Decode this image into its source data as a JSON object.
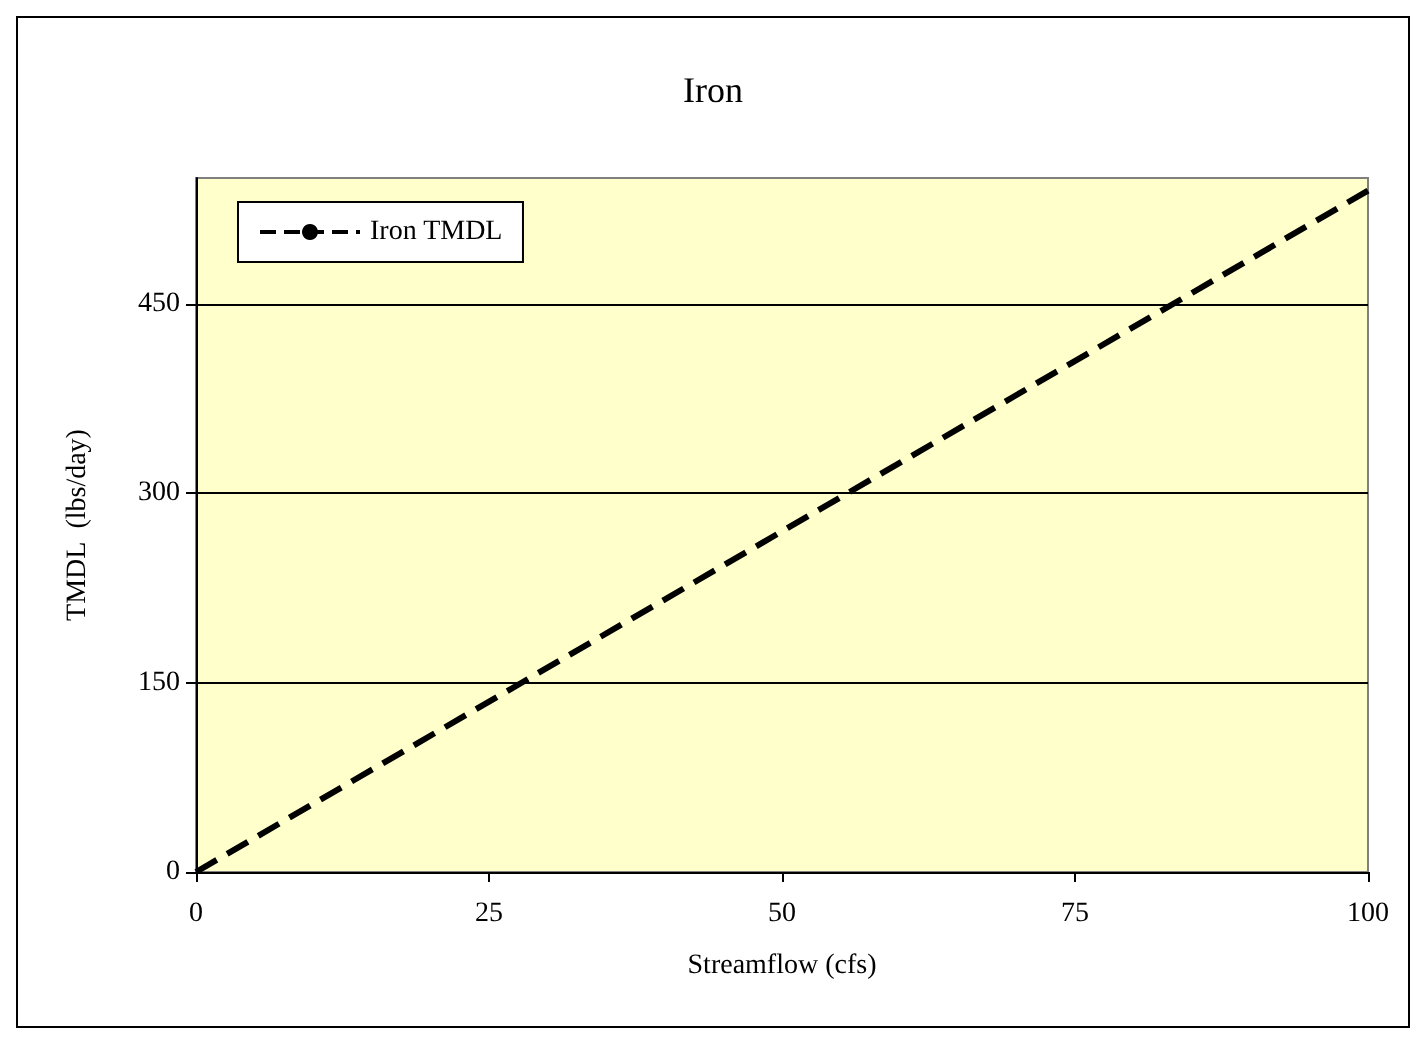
{
  "chart_data": {
    "type": "line",
    "title": "Iron",
    "xlabel": "Streamflow (cfs)",
    "ylabel": "TMDL  (lbs/day)",
    "x": [
      0,
      100
    ],
    "series": [
      {
        "name": "Iron TMDL",
        "color": "#000000",
        "values": [
          0,
          540
        ]
      }
    ],
    "xlim": [
      0,
      100
    ],
    "xticks": [
      0,
      25,
      50,
      75,
      100
    ],
    "ylim": [
      0,
      550
    ],
    "yticks": [
      0,
      150,
      300,
      450
    ],
    "grid": "y",
    "legend": "top left",
    "marker": "none",
    "line_style": "dashed"
  }
}
